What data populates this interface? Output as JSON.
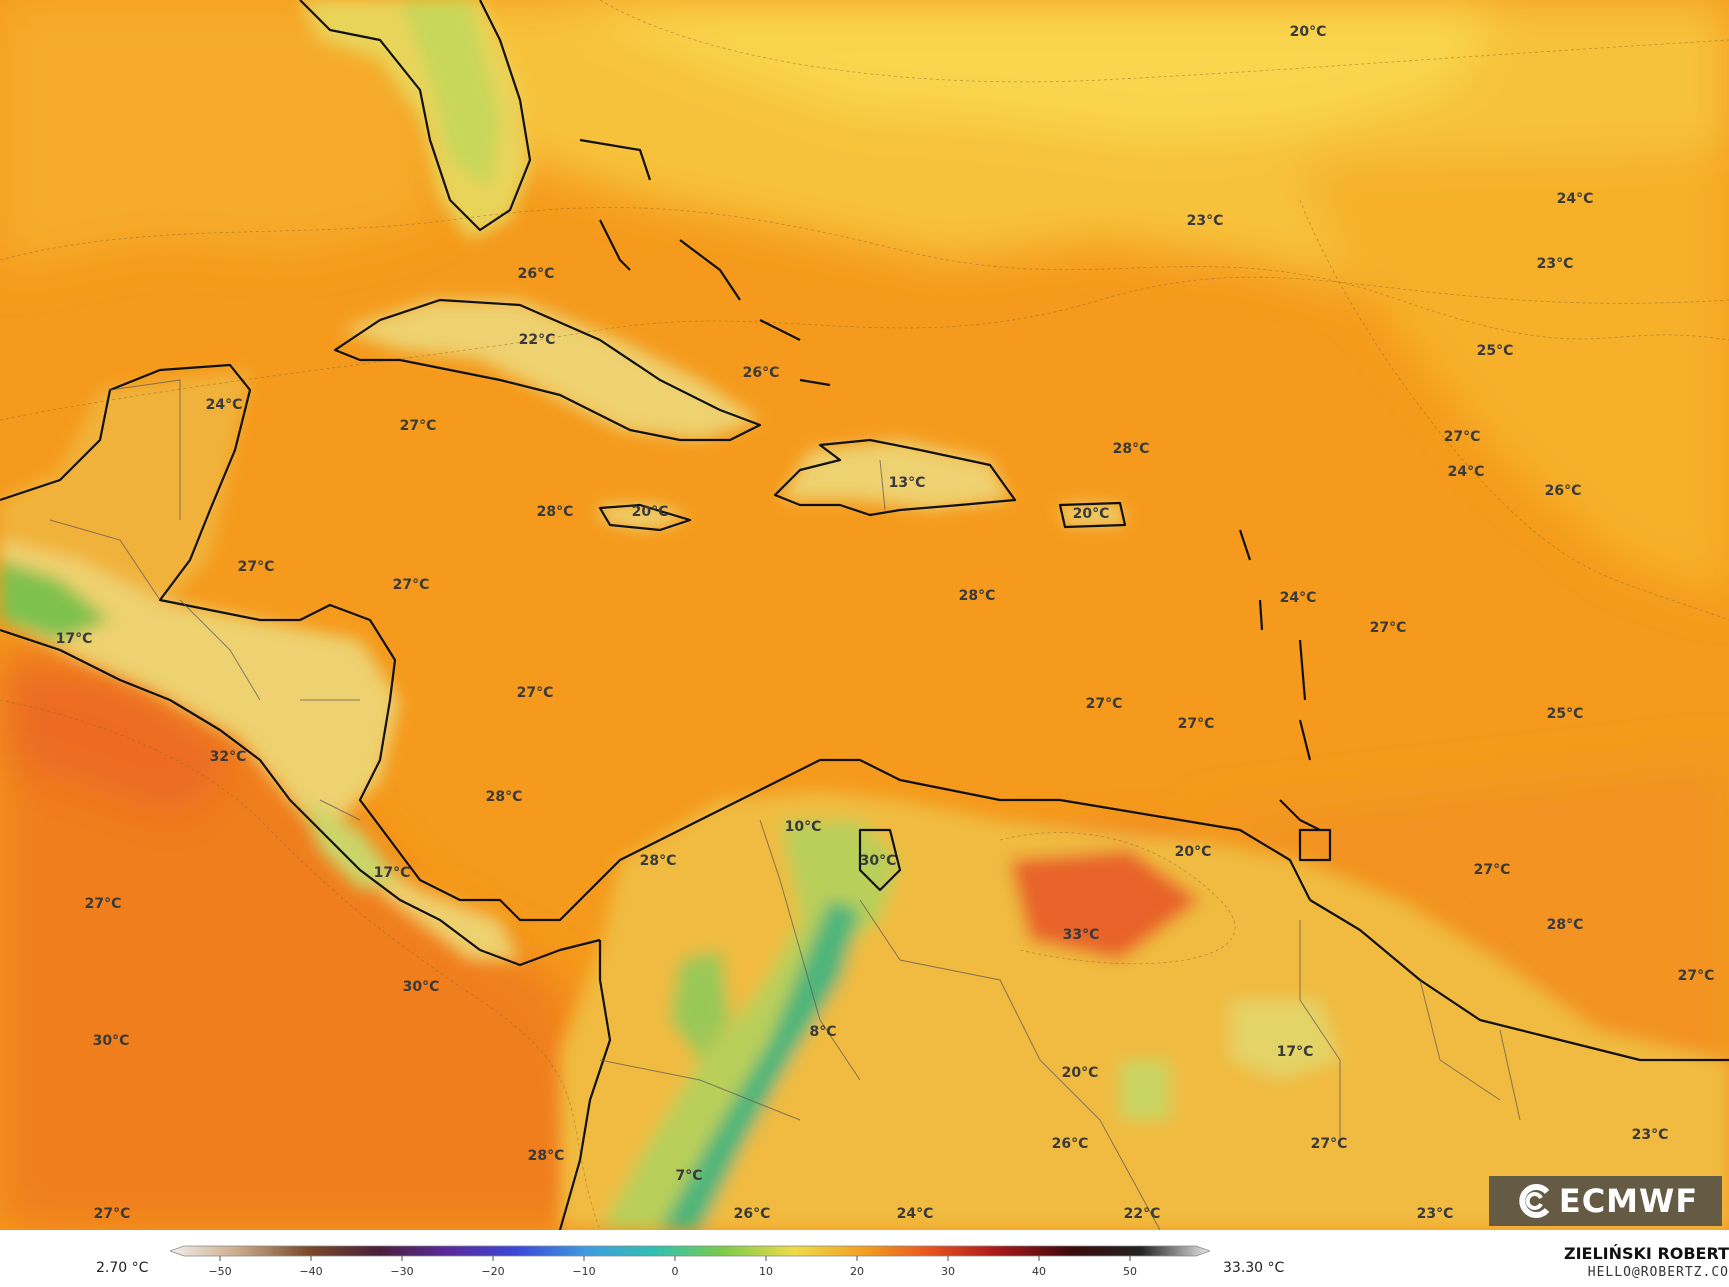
{
  "map": {
    "colors": {
      "ocean_warm": "#f59a1c",
      "ocean_cool": "#f5b230",
      "pacific": "#f0801e",
      "hot": "#e8642a",
      "yellow": "#f3cd45",
      "land_yellow": "#eed170",
      "green": "#8fc84d",
      "teal": "#3faf8a",
      "coast": "#111111"
    },
    "labels": [
      {
        "text": "20°C"
      },
      {
        "text": "23°C"
      },
      {
        "text": "24°C"
      },
      {
        "text": "23°C"
      },
      {
        "text": "26°C"
      },
      {
        "text": "22°C"
      },
      {
        "text": "26°C"
      },
      {
        "text": "25°C"
      },
      {
        "text": "24°C"
      },
      {
        "text": "27°C"
      },
      {
        "text": "28°C"
      },
      {
        "text": "27°C"
      },
      {
        "text": "24°C"
      },
      {
        "text": "13°C"
      },
      {
        "text": "26°C"
      },
      {
        "text": "28°C"
      },
      {
        "text": "20°C"
      },
      {
        "text": "20°C"
      },
      {
        "text": "27°C"
      },
      {
        "text": "27°C"
      },
      {
        "text": "28°C"
      },
      {
        "text": "24°C"
      },
      {
        "text": "27°C"
      },
      {
        "text": "17°C"
      },
      {
        "text": "27°C"
      },
      {
        "text": "27°C"
      },
      {
        "text": "27°C"
      },
      {
        "text": "25°C"
      },
      {
        "text": "32°C"
      },
      {
        "text": "28°C"
      },
      {
        "text": "10°C"
      },
      {
        "text": "28°C"
      },
      {
        "text": "30°C"
      },
      {
        "text": "20°C"
      },
      {
        "text": "27°C"
      },
      {
        "text": "17°C"
      },
      {
        "text": "27°C"
      },
      {
        "text": "33°C"
      },
      {
        "text": "28°C"
      },
      {
        "text": "30°C"
      },
      {
        "text": "27°C"
      },
      {
        "text": "30°C"
      },
      {
        "text": "8°C"
      },
      {
        "text": "17°C"
      },
      {
        "text": "20°C"
      },
      {
        "text": "28°C"
      },
      {
        "text": "26°C"
      },
      {
        "text": "27°C"
      },
      {
        "text": "23°C"
      },
      {
        "text": "7°C"
      },
      {
        "text": "27°C"
      },
      {
        "text": "26°C"
      },
      {
        "text": "24°C"
      },
      {
        "text": "22°C"
      },
      {
        "text": "23°C"
      }
    ]
  },
  "legend": {
    "min_label": "2.70 °C",
    "max_label": "33.30 °C",
    "ticks": [
      "−50",
      "−40",
      "−30",
      "−20",
      "−10",
      "0",
      "10",
      "20",
      "30",
      "40",
      "50"
    ],
    "stops": [
      "#f3efe9",
      "#c9a98a",
      "#7a4a2a",
      "#4a1f3a",
      "#5a2a9a",
      "#3a48d8",
      "#3f9be0",
      "#30c0b0",
      "#7ecb4a",
      "#eedc4a",
      "#f2a020",
      "#e8501e",
      "#a3161a",
      "#3a0a0a",
      "#222222",
      "#e8e8e8"
    ]
  },
  "credits": {
    "author": "ZIELIŃSKI ROBERT",
    "email": "HELLO@ROBERTZ.CO",
    "logo_text": "ECMWF"
  }
}
